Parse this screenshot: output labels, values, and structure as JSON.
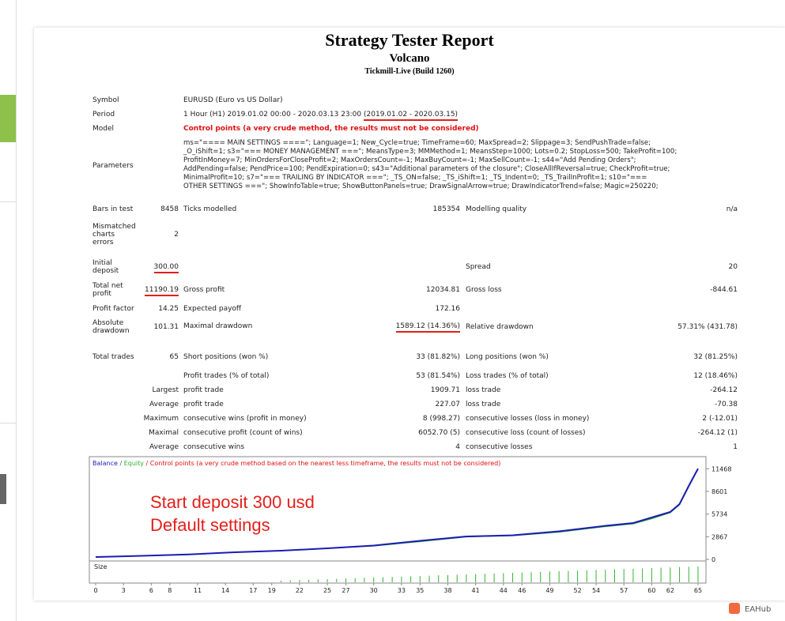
{
  "header": {
    "title": "Strategy Tester Report",
    "expert": "Volcano",
    "server": "Tickmill-Live (Build 1260)"
  },
  "info": {
    "symbol_label": "Symbol",
    "symbol": "EURUSD (Euro vs US Dollar)",
    "period_label": "Period",
    "period": "1 Hour (H1) 2019.01.02 00:00 - 2020.03.13 23:00 ",
    "period_range": "(2019.01.02 - 2020.03.15)",
    "model_label": "Model",
    "model": "Control points (a very crude method, the results must not be considered)",
    "parameters_label": "Parameters",
    "parameters": "ms=\"==== MAIN SETTINGS ====\"; Language=1; New_Cycle=true; TimeFrame=60; MaxSpread=2; Slippage=3; SendPushTrade=false;\n_O_iShift=1; s3=\"=== MONEY MANAGEMENT ===\"; MeansType=3; MMMethod=1; MeansStep=1000; Lots=0.2; StopLoss=500; TakeProfit=100;\nProfitInMoney=7; MinOrdersForCloseProfit=2; MaxOrdersCount=-1; MaxBuyCount=-1; MaxSellCount=-1; s44=\"Add Pending Orders\";\nAddPending=false; PendPrice=100; PendExpiration=0; s43=\"Additional parameters of the closure\"; CloseAllIfReversal=true; CheckProfit=true;\nMinimalProfit=10; s7=\"=== TRAILING BY INDICATOR ===\"; _TS_ON=false; _TS_iShift=1; _TS_Indent=0; _TS_TrailInProfit=1; s10=\"===\nOTHER SETTINGS ===\"; ShowInfoTable=true; ShowButtonPanels=true; DrawSignalArrow=true; DrawIndicatorTrend=false; Magic=250220;"
  },
  "stats": {
    "rows": [
      [
        "Bars in test",
        "8458",
        "Ticks modelled",
        "185354",
        "Modelling quality",
        "n/a"
      ],
      [
        "Mismatched charts errors",
        "2",
        null,
        null,
        null,
        null
      ],
      [
        "Initial deposit",
        "300.00",
        null,
        null,
        "Spread",
        "20"
      ],
      [
        "Total net profit",
        "11190.19",
        "Gross profit",
        "12034.81",
        "Gross loss",
        "-844.61"
      ],
      [
        "Profit factor",
        "14.25",
        "Expected payoff",
        "172.16",
        null,
        null
      ],
      [
        "Absolute drawdown",
        "101.31",
        "Maximal drawdown",
        "1589.12 (14.36%)",
        "Relative drawdown",
        "57.31% (431.78)"
      ],
      [
        "Total trades",
        "65",
        "Short positions (won %)",
        "33 (81.82%)",
        "Long positions (won %)",
        "32 (81.25%)"
      ],
      [
        null,
        null,
        "Profit trades (% of total)",
        "53 (81.54%)",
        "Loss trades (% of total)",
        "12 (18.46%)"
      ],
      [
        null,
        "Largest",
        "profit trade",
        "1909.71",
        "loss trade",
        "-264.12"
      ],
      [
        null,
        "Average",
        "profit trade",
        "227.07",
        "loss trade",
        "-70.38"
      ],
      [
        null,
        "Maximum",
        "consecutive wins (profit in money)",
        "8 (998.27)",
        "consecutive losses (loss in money)",
        "2 (-12.01)"
      ],
      [
        null,
        "Maximal",
        "consecutive profit (count of wins)",
        "6052.70 (5)",
        "consecutive loss (count of losses)",
        "-264.12 (1)"
      ],
      [
        null,
        "Average",
        "consecutive wins",
        "4",
        "consecutive losses",
        "1"
      ]
    ]
  },
  "graph": {
    "legend": {
      "balance": "Balance",
      "sep": " / ",
      "equity": "Equity",
      "note": " / Control points (a very crude method based on the nearest less timeframe, the results must not be considered)"
    },
    "size_label": "Size",
    "x": [
      0,
      5,
      10,
      15,
      20,
      25,
      30,
      35,
      40,
      45,
      50,
      55,
      58,
      60,
      62,
      63,
      64,
      65
    ],
    "series": [
      {
        "name": "Balance",
        "color": "#1c1cb4",
        "values": [
          300,
          450,
          620,
          900,
          1100,
          1400,
          1750,
          2350,
          2900,
          3050,
          3550,
          4250,
          4600,
          5300,
          6000,
          7000,
          9300,
          11490.19
        ]
      },
      {
        "name": "Equity",
        "color": "#2fb52f",
        "values": [
          280,
          430,
          600,
          880,
          1080,
          1380,
          1700,
          2250,
          2850,
          3000,
          3450,
          4150,
          4500,
          5150,
          5900,
          6900,
          9200,
          11470
        ]
      }
    ],
    "xlim": [
      0,
      65
    ],
    "ylim": [
      -200,
      12800
    ],
    "xticks": [
      0,
      3,
      6,
      8,
      11,
      14,
      17,
      19,
      22,
      25,
      27,
      30,
      33,
      35,
      38,
      41,
      44,
      46,
      49,
      52,
      54,
      57,
      60,
      62,
      65
    ],
    "yticks": [
      0,
      2867,
      5734,
      8601,
      11468
    ]
  },
  "annotation": [
    "Start deposit 300 usd",
    "Default settings"
  ],
  "watermark": "EAHub"
}
